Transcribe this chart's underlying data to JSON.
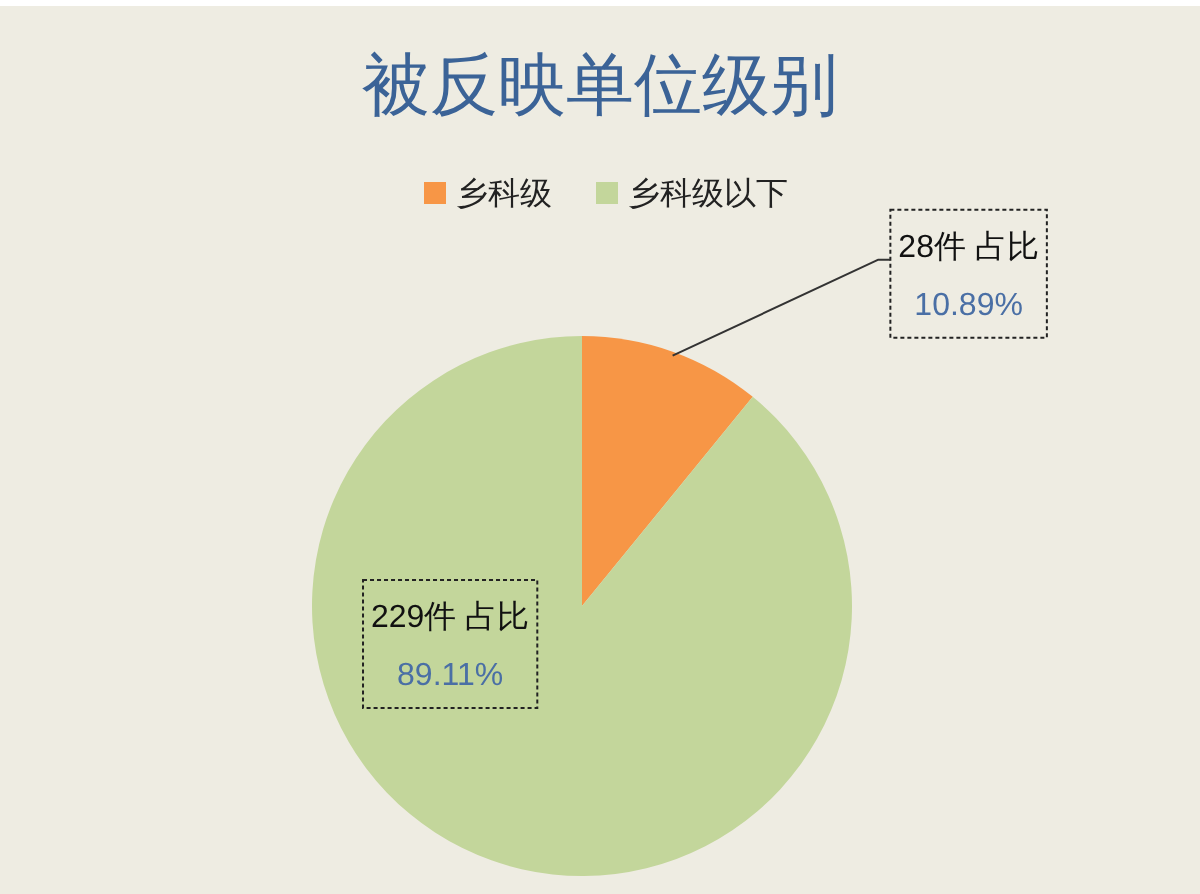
{
  "chart_data": {
    "type": "pie",
    "title": "被反映单位级别",
    "categories": [
      "乡科级",
      "乡科级以下"
    ],
    "values": [
      28,
      229
    ],
    "colors": [
      "#f79646",
      "#c3d69b"
    ],
    "value_labels": [
      "28件 占比\n10.89%",
      "229件 占比\n89.11%"
    ],
    "legend": "top"
  }
}
